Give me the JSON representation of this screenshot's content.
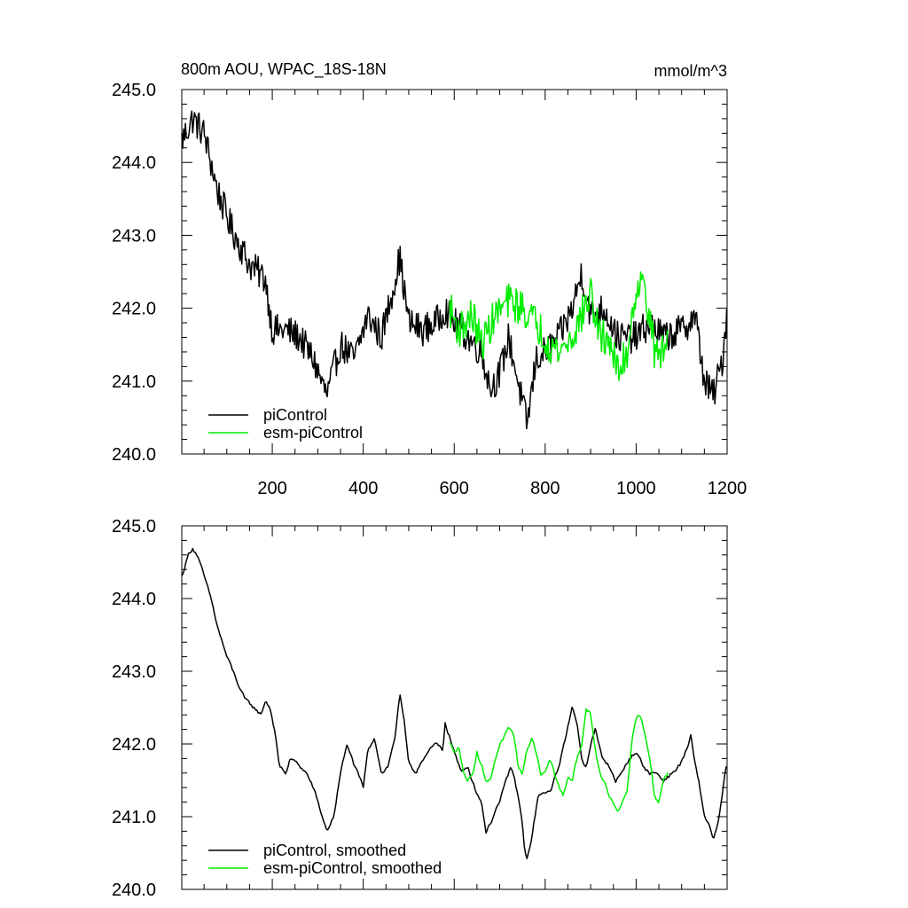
{
  "colors": {
    "piControl": "#000000",
    "esm_piControl": "#00ee00"
  },
  "chart_data": [
    {
      "type": "line",
      "title": "800m AOU, WPAC_18S-18N",
      "units": "mmol/m^3",
      "xlim": [
        1,
        1200
      ],
      "ylim": [
        240.0,
        245.0
      ],
      "yticks": [
        "240.0",
        "241.0",
        "242.0",
        "243.0",
        "244.0",
        "245.0"
      ],
      "xticks": [
        "200",
        "400",
        "600",
        "800",
        "1000",
        "1200"
      ],
      "legend": "bottom-left",
      "series": [
        {
          "name": "piControl",
          "color": "#000000",
          "noise": 0.22,
          "x": [
            1,
            25,
            50,
            80,
            110,
            150,
            185,
            200,
            230,
            260,
            290,
            320,
            350,
            380,
            410,
            440,
            470,
            480,
            500,
            530,
            560,
            580,
            600,
            630,
            660,
            680,
            700,
            720,
            740,
            760,
            780,
            800,
            830,
            860,
            880,
            900,
            930,
            960,
            1000,
            1030,
            1060,
            1100,
            1130,
            1150,
            1170,
            1190,
            1200
          ],
          "y": [
            244.3,
            244.6,
            244.4,
            243.6,
            243.1,
            242.6,
            242.4,
            241.7,
            241.7,
            241.6,
            241.3,
            240.8,
            241.5,
            241.3,
            241.9,
            241.6,
            242.4,
            242.7,
            241.8,
            241.7,
            241.8,
            242.0,
            241.8,
            241.6,
            241.4,
            240.9,
            241.1,
            241.6,
            241.0,
            240.4,
            241.3,
            241.4,
            241.6,
            242.0,
            242.5,
            241.9,
            242.0,
            241.6,
            241.6,
            241.8,
            241.6,
            241.7,
            241.9,
            241.0,
            240.8,
            241.3,
            242.0
          ]
        },
        {
          "name": "esm-piControl",
          "color": "#00ee00",
          "noise": 0.25,
          "x": [
            590,
            610,
            640,
            660,
            690,
            720,
            750,
            780,
            810,
            830,
            860,
            880,
            900,
            920,
            940,
            960,
            980,
            1000,
            1020,
            1040,
            1060,
            1070
          ],
          "y": [
            242.0,
            241.7,
            241.9,
            241.5,
            241.9,
            242.1,
            242.0,
            241.8,
            241.5,
            241.4,
            241.6,
            241.9,
            242.2,
            241.6,
            241.6,
            241.1,
            241.4,
            242.3,
            242.3,
            241.4,
            241.4,
            241.6
          ]
        }
      ]
    },
    {
      "type": "line",
      "xlim": [
        1,
        1200
      ],
      "ylim": [
        240.0,
        245.0
      ],
      "yticks": [
        "240.0",
        "241.0",
        "242.0",
        "243.0",
        "244.0",
        "245.0"
      ],
      "legend": "bottom-left",
      "series": [
        {
          "name": "piControl, smoothed",
          "color": "#000000",
          "noise": 0.06,
          "x": [
            1,
            15,
            25,
            35,
            50,
            65,
            80,
            100,
            120,
            140,
            160,
            175,
            185,
            195,
            205,
            215,
            230,
            240,
            260,
            275,
            290,
            300,
            310,
            320,
            335,
            350,
            365,
            380,
            400,
            410,
            425,
            440,
            455,
            470,
            480,
            490,
            500,
            515,
            530,
            545,
            560,
            575,
            580,
            590,
            600,
            615,
            630,
            645,
            660,
            670,
            680,
            690,
            700,
            710,
            725,
            740,
            750,
            755,
            760,
            770,
            785,
            800,
            815,
            830,
            845,
            860,
            870,
            880,
            890,
            900,
            910,
            925,
            940,
            955,
            970,
            985,
            1000,
            1015,
            1030,
            1045,
            1060,
            1080,
            1095,
            1110,
            1120,
            1130,
            1140,
            1150,
            1160,
            1170,
            1180,
            1190,
            1200
          ],
          "y": [
            244.3,
            244.6,
            244.7,
            244.6,
            244.3,
            244.0,
            243.6,
            243.2,
            242.9,
            242.6,
            242.5,
            242.4,
            242.6,
            242.5,
            242.2,
            241.7,
            241.6,
            241.8,
            241.7,
            241.6,
            241.4,
            241.2,
            241.0,
            240.8,
            241.0,
            241.6,
            242.0,
            241.7,
            241.4,
            241.9,
            242.1,
            241.6,
            241.7,
            242.1,
            242.7,
            242.3,
            241.7,
            241.6,
            241.8,
            241.9,
            242.0,
            241.9,
            242.3,
            242.1,
            241.9,
            241.6,
            241.7,
            241.4,
            241.2,
            240.8,
            240.9,
            241.1,
            241.2,
            241.4,
            241.7,
            241.3,
            240.9,
            240.5,
            240.4,
            240.7,
            241.3,
            241.3,
            241.4,
            241.7,
            242.1,
            242.5,
            242.3,
            241.8,
            241.7,
            242.0,
            242.2,
            241.8,
            241.7,
            241.5,
            241.6,
            241.8,
            241.9,
            241.7,
            241.6,
            241.6,
            241.5,
            241.6,
            241.7,
            241.9,
            242.1,
            241.7,
            241.4,
            241.0,
            240.9,
            240.7,
            240.9,
            241.3,
            241.8
          ]
        },
        {
          "name": "esm-piControl, smoothed",
          "color": "#00ee00",
          "noise": 0.07,
          "x": [
            590,
            600,
            610,
            620,
            630,
            640,
            650,
            660,
            670,
            680,
            690,
            700,
            710,
            720,
            730,
            740,
            750,
            760,
            770,
            780,
            790,
            800,
            810,
            820,
            830,
            840,
            850,
            860,
            870,
            880,
            890,
            900,
            910,
            920,
            930,
            940,
            950,
            960,
            970,
            980,
            990,
            1000,
            1010,
            1020,
            1030,
            1040,
            1050,
            1060,
            1070
          ],
          "y": [
            242.0,
            241.9,
            242.0,
            241.6,
            241.5,
            241.6,
            241.9,
            241.7,
            241.5,
            241.5,
            241.8,
            242.0,
            242.1,
            242.2,
            242.1,
            241.7,
            241.6,
            241.9,
            242.1,
            241.9,
            241.6,
            241.6,
            241.8,
            241.6,
            241.4,
            241.3,
            241.5,
            241.5,
            241.8,
            242.0,
            242.5,
            242.4,
            241.9,
            241.6,
            241.5,
            241.3,
            241.2,
            241.1,
            241.2,
            241.4,
            242.0,
            242.4,
            242.4,
            242.1,
            241.8,
            241.3,
            241.2,
            241.5,
            241.6
          ]
        }
      ]
    }
  ]
}
